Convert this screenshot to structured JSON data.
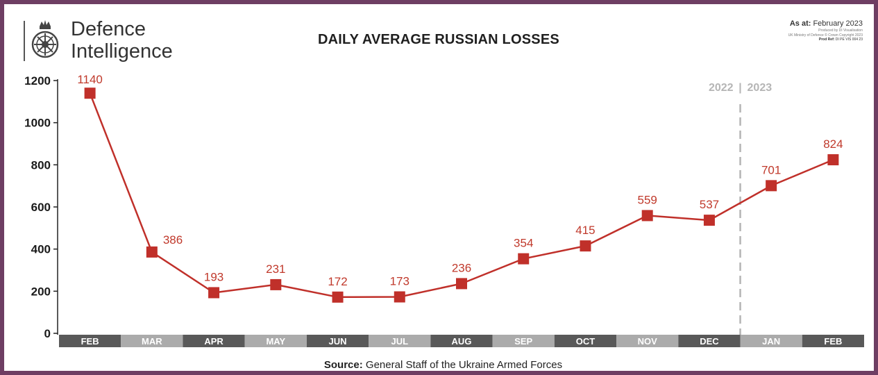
{
  "logo": {
    "line1": "Defence",
    "line2": "Intelligence",
    "icon": "defence-intelligence-crest-icon"
  },
  "header": {
    "title": "DAILY AVERAGE RUSSIAN LOSSES",
    "as_at_label": "As at:",
    "as_at_value": "February 2023",
    "produced_by": "Produced by DI Visualisation",
    "copyright": "UK Ministry of Defence © Crown Copyright 2023",
    "prod_ref_label": "Prod Ref:",
    "prod_ref_value": "DI PE VIS 004 23"
  },
  "footer": {
    "source_label": "Source:",
    "source_value": "General Staff of the Ukraine Armed Forces"
  },
  "colors": {
    "line": "#c0302a",
    "marker": "#c0302a",
    "label": "#c0392b",
    "band_dark": "#595959",
    "band_light": "#ababab",
    "divider": "#b5b5b5",
    "frame": "#6e3e63"
  },
  "chart_data": {
    "type": "line",
    "title": "DAILY AVERAGE RUSSIAN LOSSES",
    "categories": [
      "FEB",
      "MAR",
      "APR",
      "MAY",
      "JUN",
      "JUL",
      "AUG",
      "SEP",
      "OCT",
      "NOV",
      "DEC",
      "JAN",
      "FEB"
    ],
    "series": [
      {
        "values": [
          1140,
          386,
          193,
          231,
          172,
          173,
          236,
          354,
          415,
          559,
          537,
          701,
          824
        ]
      }
    ],
    "data_labels": [
      "1140",
      "386",
      "193",
      "231",
      "172",
      "173",
      "236",
      "354",
      "415",
      "559",
      "537",
      "701",
      "824"
    ],
    "y_ticks": [
      0,
      200,
      400,
      600,
      800,
      1000,
      1200
    ],
    "ylim": [
      0,
      1200
    ],
    "year_divider": {
      "after_category_index": 10,
      "label_left": "2022",
      "label_right": "2023",
      "separator": "|"
    },
    "grid": false,
    "legend": "none"
  }
}
